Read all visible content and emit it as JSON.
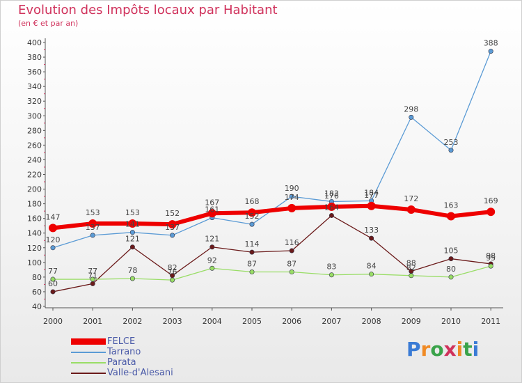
{
  "title": "Evolution des Impôts locaux par Habitant",
  "subtitle": "(en € et par an)",
  "logo_text": "Proxiti",
  "chart_data": {
    "type": "line",
    "title": "Evolution des Impôts locaux par Habitant",
    "subtitle": "(en € et par an)",
    "xlabel": "",
    "ylabel": "",
    "ylim": [
      40,
      400
    ],
    "ytick_step": 20,
    "grid": false,
    "legend_position": "bottom-left",
    "categories": [
      "2000",
      "2001",
      "2002",
      "2003",
      "2004",
      "2005",
      "2006",
      "2007",
      "2008",
      "2009",
      "2010",
      "2011"
    ],
    "series": [
      {
        "name": "FELCE",
        "color": "#ee0000",
        "values": [
          147,
          153,
          153,
          152,
          167,
          168,
          174,
          176,
          177,
          172,
          163,
          169
        ],
        "labels": [
          "147",
          "153",
          "153",
          "152",
          "167",
          "168",
          "174",
          "176",
          "177",
          "172",
          "163",
          "169"
        ]
      },
      {
        "name": "Tarrano",
        "color": "#5b9bd5",
        "values": [
          120,
          137,
          141,
          137,
          161,
          152,
          190,
          183,
          184,
          298,
          253,
          388
        ],
        "labels": [
          "120",
          "137",
          "141",
          "137",
          "161",
          "152",
          "190",
          "183",
          "184",
          "298",
          "253",
          "388"
        ]
      },
      {
        "name": "Parata",
        "color": "#99dd66",
        "values": [
          77,
          77,
          78,
          76,
          92,
          87,
          87,
          83,
          84,
          82,
          80,
          95
        ],
        "labels": [
          "77",
          "77",
          "78",
          "76",
          "92",
          "87",
          "87",
          "83",
          "84",
          "82",
          "80",
          "95"
        ]
      },
      {
        "name": "Valle-d'Alesani",
        "color": "#6b1a1a",
        "values": [
          60,
          71,
          121,
          82,
          121,
          114,
          116,
          164,
          133,
          88,
          105,
          98
        ],
        "labels": [
          "60",
          "71",
          "121",
          "82",
          "121",
          "114",
          "116",
          "164",
          "133",
          "88",
          "105",
          "98"
        ]
      }
    ]
  }
}
